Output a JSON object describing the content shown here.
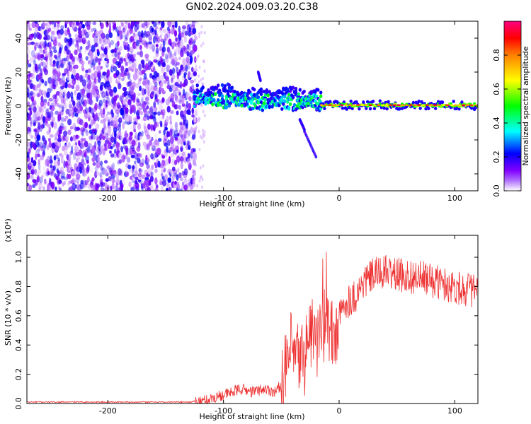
{
  "figure": {
    "title": "GN02.2024.009.03.20.C38"
  },
  "chart_data": [
    {
      "type": "heatmap",
      "title": "",
      "xlabel": "Height of straight line (km)",
      "ylabel": "Frequency (Hz)",
      "xlim": [
        -270,
        120
      ],
      "ylim": [
        -50,
        50
      ],
      "x_ticks": [
        -200,
        -100,
        0,
        100
      ],
      "y_ticks": [
        -40,
        -20,
        0,
        20,
        40
      ],
      "colorbar": {
        "label": "Normalized spectral amplitude",
        "range": [
          0,
          1
        ],
        "ticks": [
          0.0,
          0.2,
          0.4,
          0.6,
          0.8
        ],
        "colormap": [
          "#ffffff",
          "#8000ff",
          "#0000ff",
          "#00ffff",
          "#00ff00",
          "#ffff00",
          "#ff8000",
          "#ff0000",
          "#ff0080"
        ]
      },
      "regions": [
        {
          "name": "noise",
          "x": [
            -270,
            -125
          ],
          "freq": [
            -50,
            50
          ],
          "amplitude": [
            0.02,
            0.25
          ]
        },
        {
          "name": "transition",
          "x": [
            -125,
            -15
          ],
          "freq_center": 3,
          "amplitude": [
            0.2,
            0.5
          ]
        },
        {
          "name": "carrier",
          "x": [
            -15,
            120
          ],
          "freq_center": 0.5,
          "amplitude": [
            0.6,
            0.95
          ]
        }
      ],
      "features": [
        {
          "x": [
            -34,
            -30
          ],
          "freq": [
            -14,
            -8
          ]
        },
        {
          "x": [
            -30,
            -20
          ],
          "freq": [
            -30,
            -15
          ]
        },
        {
          "x": [
            -70,
            -68
          ],
          "freq": [
            15,
            20
          ]
        }
      ]
    },
    {
      "type": "line",
      "title": "",
      "xlabel": "Height of straight line (km)",
      "ylabel": "SNR (10 * v/v)",
      "y_multiplier": "(x10⁴)",
      "xlim": [
        -270,
        120
      ],
      "ylim": [
        0,
        1.15
      ],
      "x_ticks": [
        -200,
        -100,
        0,
        100
      ],
      "y_ticks": [
        0.0,
        0.2,
        0.4,
        0.6,
        0.8,
        1.0
      ],
      "series": [
        {
          "color": "#ee3333",
          "x": [
            -270,
            -200,
            -130,
            -115,
            -105,
            -95,
            -85,
            -75,
            -65,
            -55,
            -48,
            -42,
            -38,
            -30,
            -25,
            -20,
            -15,
            -10,
            -5,
            0,
            5,
            10,
            15,
            20,
            30,
            40,
            50,
            60,
            70,
            80,
            90,
            100,
            110,
            120
          ],
          "y": [
            0.01,
            0.01,
            0.01,
            0.02,
            0.05,
            0.07,
            0.1,
            0.08,
            0.1,
            0.08,
            0.15,
            0.35,
            0.3,
            0.32,
            0.5,
            0.45,
            0.48,
            0.55,
            0.42,
            0.58,
            0.68,
            0.72,
            0.74,
            0.82,
            0.88,
            0.9,
            0.88,
            0.87,
            0.86,
            0.84,
            0.82,
            0.8,
            0.78,
            0.77
          ]
        }
      ]
    }
  ]
}
